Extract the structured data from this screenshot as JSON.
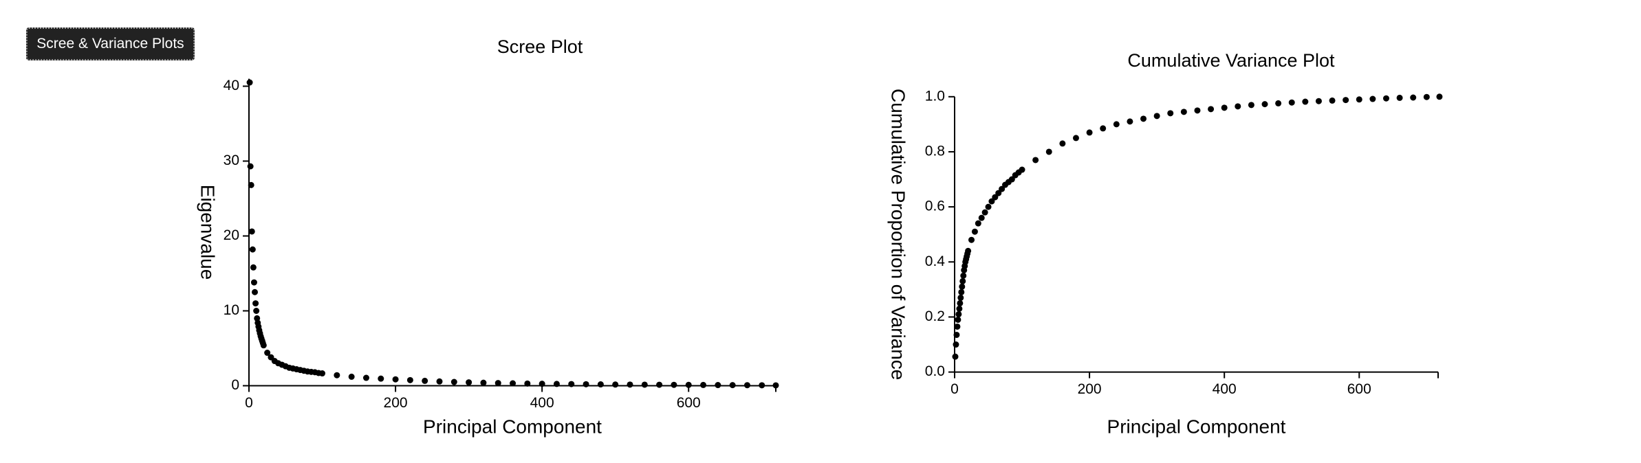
{
  "button": {
    "label": "Scree & Variance Plots"
  },
  "chart_data": [
    {
      "type": "scatter",
      "title": "Scree Plot",
      "x_label": "Principal Component",
      "y_label": "Eigenvalue",
      "color": "#000000",
      "x": [
        1,
        2,
        3,
        4,
        5,
        6,
        7,
        8,
        9,
        10,
        11,
        12,
        13,
        14,
        15,
        16,
        17,
        18,
        19,
        20,
        25,
        30,
        35,
        40,
        45,
        50,
        55,
        60,
        65,
        70,
        75,
        80,
        85,
        90,
        95,
        100,
        120,
        140,
        160,
        180,
        200,
        220,
        240,
        260,
        280,
        300,
        320,
        340,
        360,
        380,
        400,
        420,
        440,
        460,
        480,
        500,
        520,
        540,
        560,
        580,
        600,
        620,
        640,
        660,
        680,
        700,
        719
      ],
      "values": [
        40.5,
        29.3,
        26.8,
        20.6,
        18.2,
        15.8,
        13.8,
        12.5,
        11.0,
        10.0,
        9.0,
        8.4,
        7.9,
        7.4,
        7.0,
        6.6,
        6.3,
        6.0,
        5.7,
        5.4,
        4.4,
        3.8,
        3.3,
        3.0,
        2.8,
        2.6,
        2.4,
        2.3,
        2.2,
        2.1,
        2.0,
        1.9,
        1.85,
        1.8,
        1.7,
        1.65,
        1.4,
        1.2,
        1.05,
        0.95,
        0.85,
        0.75,
        0.65,
        0.57,
        0.5,
        0.45,
        0.4,
        0.36,
        0.32,
        0.29,
        0.26,
        0.24,
        0.22,
        0.2,
        0.18,
        0.16,
        0.15,
        0.14,
        0.13,
        0.12,
        0.11,
        0.1,
        0.09,
        0.08,
        0.07,
        0.06,
        0.05
      ],
      "xlim": [
        0,
        719
      ],
      "ylim": [
        0,
        41
      ],
      "xticks": [
        0,
        200,
        400,
        600
      ],
      "yticks": [
        0,
        10,
        20,
        30,
        40
      ]
    },
    {
      "type": "scatter",
      "title": "Cumulative Variance Plot",
      "x_label": "Principal Component",
      "y_label": "Cumulative Proportion of Variance",
      "color": "#000000",
      "x": [
        1,
        2,
        3,
        4,
        5,
        6,
        7,
        8,
        9,
        10,
        11,
        12,
        13,
        14,
        15,
        16,
        17,
        18,
        19,
        20,
        25,
        30,
        35,
        40,
        45,
        50,
        55,
        60,
        65,
        70,
        75,
        80,
        85,
        90,
        95,
        100,
        120,
        140,
        160,
        180,
        200,
        220,
        240,
        260,
        280,
        300,
        320,
        340,
        360,
        380,
        400,
        420,
        440,
        460,
        480,
        500,
        520,
        540,
        560,
        580,
        600,
        620,
        640,
        660,
        680,
        700,
        719
      ],
      "values": [
        0.056,
        0.1,
        0.135,
        0.165,
        0.19,
        0.21,
        0.23,
        0.25,
        0.27,
        0.29,
        0.31,
        0.33,
        0.35,
        0.37,
        0.385,
        0.4,
        0.41,
        0.42,
        0.43,
        0.44,
        0.48,
        0.51,
        0.54,
        0.56,
        0.58,
        0.6,
        0.62,
        0.635,
        0.65,
        0.665,
        0.68,
        0.69,
        0.7,
        0.715,
        0.725,
        0.735,
        0.77,
        0.8,
        0.83,
        0.85,
        0.87,
        0.885,
        0.9,
        0.91,
        0.92,
        0.93,
        0.94,
        0.945,
        0.95,
        0.955,
        0.96,
        0.965,
        0.97,
        0.973,
        0.976,
        0.979,
        0.982,
        0.984,
        0.986,
        0.988,
        0.99,
        0.992,
        0.994,
        0.996,
        0.997,
        0.999,
        1.0
      ],
      "xlim": [
        0,
        717
      ],
      "ylim": [
        0,
        1
      ],
      "xticks": [
        0,
        200,
        400,
        600
      ],
      "yticks": [
        {
          "value": 0,
          "label": "0.0"
        },
        0.2,
        0.4,
        0.6,
        0.8,
        {
          "value": 1,
          "label": "1.0"
        }
      ]
    }
  ]
}
